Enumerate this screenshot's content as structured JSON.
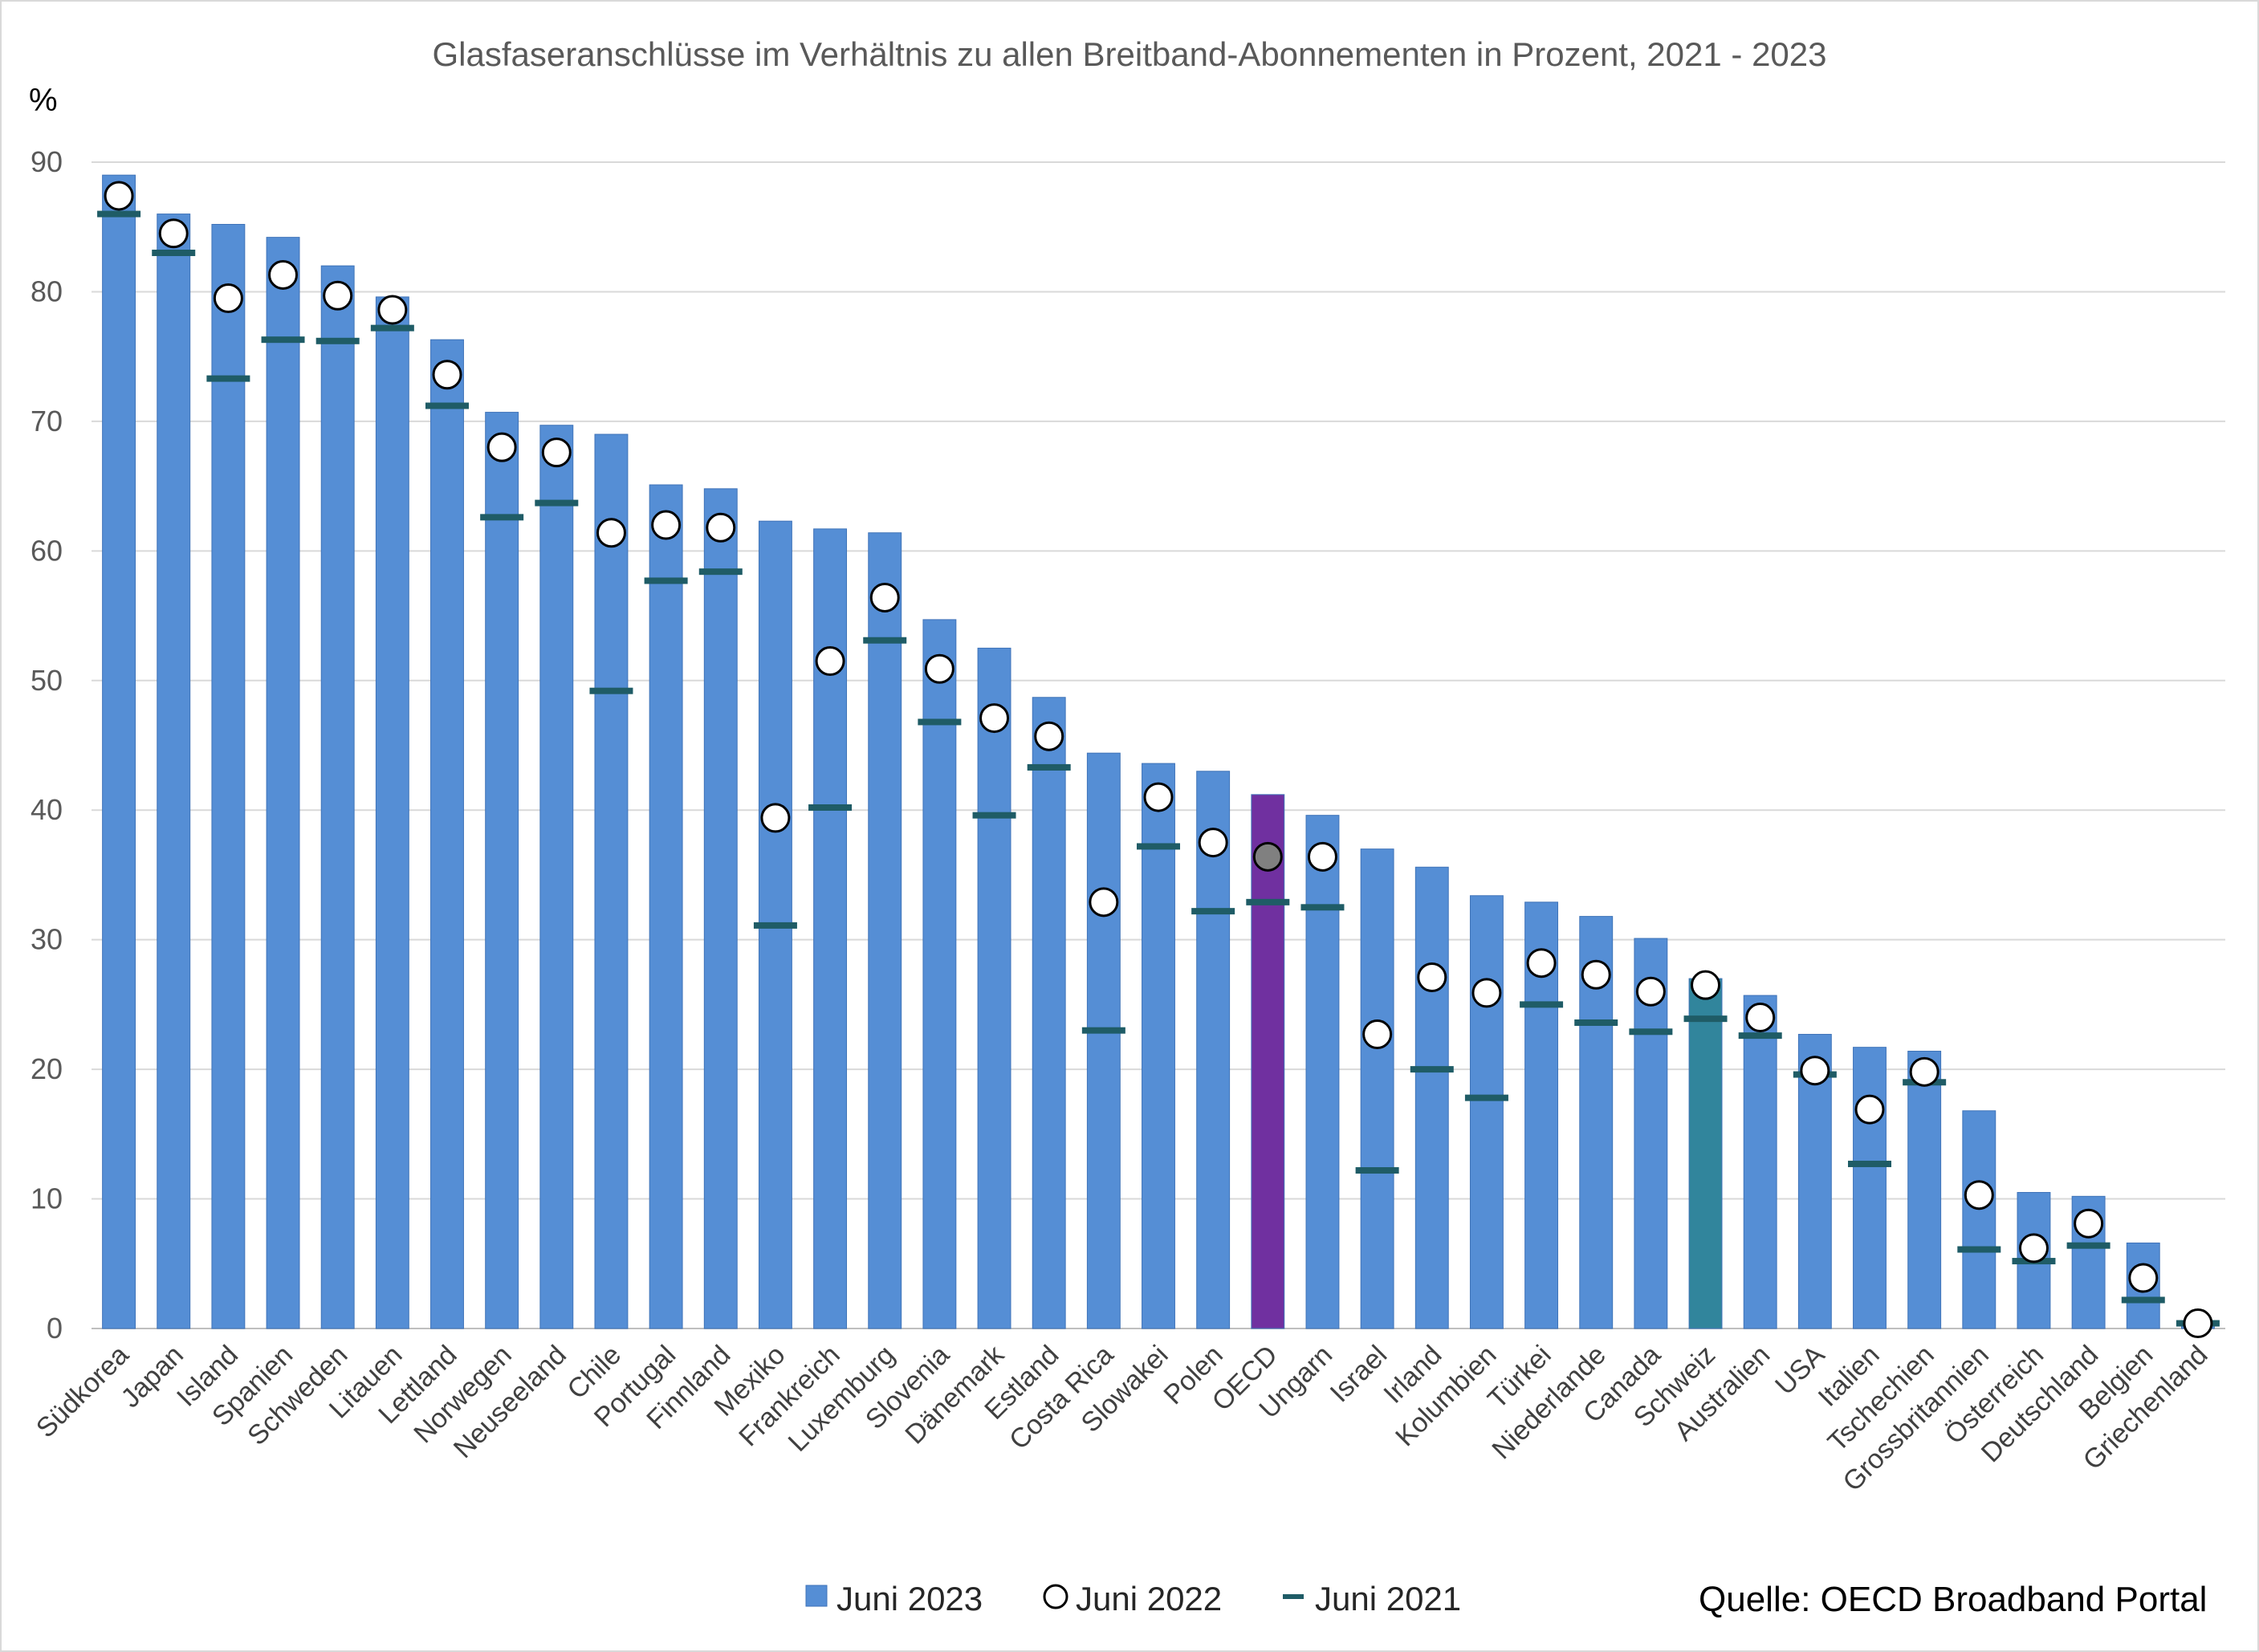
{
  "chart_data": {
    "type": "bar",
    "title": "Glasfaseranschlüsse im Verhältnis zu allen Breitband-Abonnementen in Prozent, 2021 - 2023",
    "y_unit": "%",
    "xlabel": "",
    "ylabel": "",
    "ylim": [
      0,
      90
    ],
    "yticks": [
      "0",
      "10",
      "20",
      "30",
      "40",
      "50",
      "60",
      "70",
      "80",
      "90"
    ],
    "grid": true,
    "legend_position": "bottom",
    "categories": [
      "Südkorea",
      "Japan",
      "Island",
      "Spanien",
      "Schweden",
      "Litauen",
      "Lettland",
      "Norwegen",
      "Neuseeland",
      "Chile",
      "Portugal",
      "Finnland",
      "Mexiko",
      "Frankreich",
      "Luxemburg",
      "Slovenia",
      "Dänemark",
      "Estland",
      "Costa Rica",
      "Slowakei",
      "Polen",
      "OECD",
      "Ungarn",
      "Israel",
      "Irland",
      "Kolumbien",
      "Türkei",
      "Niederlande",
      "Canada",
      "Schweiz",
      "Australien",
      "USA",
      "Italien",
      "Tschechien",
      "Grossbritannien",
      "Österreich",
      "Deutschland",
      "Belgien",
      "Griechenland"
    ],
    "series": [
      {
        "name": "Juni 2023",
        "type": "bar",
        "values": [
          89.0,
          86.0,
          85.2,
          84.2,
          82.0,
          79.6,
          76.3,
          70.7,
          69.7,
          69.0,
          65.1,
          64.8,
          62.3,
          61.7,
          61.4,
          54.7,
          52.5,
          48.7,
          44.4,
          43.6,
          43.0,
          41.2,
          39.6,
          37.0,
          35.6,
          33.4,
          32.9,
          31.8,
          30.1,
          27.0,
          25.7,
          22.7,
          21.7,
          21.4,
          16.8,
          10.5,
          10.2,
          6.6,
          0.4
        ]
      },
      {
        "name": "Juni 2022",
        "type": "marker-circle",
        "values": [
          87.4,
          84.5,
          79.5,
          81.3,
          79.7,
          78.6,
          73.6,
          68.0,
          67.6,
          61.4,
          62.0,
          61.8,
          39.4,
          51.5,
          56.4,
          50.9,
          47.1,
          45.7,
          32.9,
          41.0,
          37.5,
          36.4,
          36.4,
          22.7,
          27.1,
          25.9,
          28.2,
          27.3,
          26.0,
          26.5,
          24.0,
          19.9,
          16.9,
          19.8,
          10.3,
          6.2,
          8.1,
          3.9,
          0.4
        ]
      },
      {
        "name": "Juni 2021",
        "type": "marker-dash",
        "values": [
          86.0,
          83.0,
          73.3,
          76.3,
          76.2,
          77.2,
          71.2,
          62.6,
          63.7,
          49.2,
          57.7,
          58.4,
          31.1,
          40.2,
          53.1,
          46.8,
          39.6,
          43.3,
          23.0,
          37.2,
          32.2,
          32.9,
          32.5,
          12.2,
          20.0,
          17.8,
          25.0,
          23.6,
          22.9,
          23.9,
          22.6,
          19.6,
          12.7,
          19.0,
          6.1,
          5.2,
          6.4,
          2.2,
          0.4
        ]
      }
    ],
    "highlight": {
      "OECD": "#7030a0",
      "Schweiz": "#31859c"
    },
    "colors": {
      "bar": "#558ed5",
      "bar_edge": "#3f73b8",
      "dash": "#1f5c66",
      "circle_fill": "#ffffff",
      "circle_oecd_fill": "#808080",
      "grid": "#d9d9d9",
      "axis": "#bfbfbf"
    },
    "source": "Quelle: OECD Broadband Portal"
  }
}
